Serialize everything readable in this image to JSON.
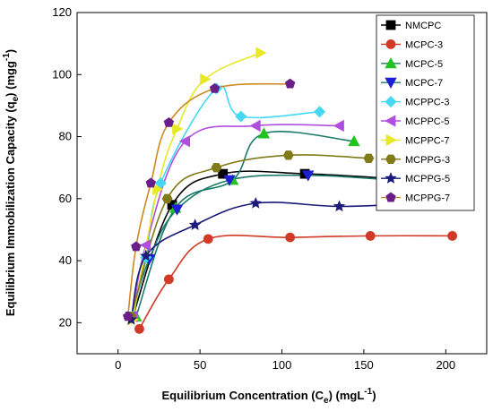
{
  "chart_data": {
    "type": "line",
    "xlabel": "Equilibrium Concentration (C",
    "xlabel_sub": "e",
    "xlabel_unit": ") (mgL",
    "xlabel_sup": "-1",
    "xlabel_end": ")",
    "ylabel": "Equilibrium Immobilization Capacity (q",
    "ylabel_sub": "e",
    "ylabel_unit": ") (mgg",
    "ylabel_sup": "-1",
    "ylabel_end": ")",
    "xlim": [
      -25,
      225
    ],
    "ylim": [
      10,
      120
    ],
    "xticks": [
      0,
      50,
      100,
      150,
      200
    ],
    "yticks": [
      20,
      40,
      60,
      80,
      100,
      120
    ],
    "grid": false,
    "legend_position": "top-right",
    "series": [
      {
        "name": "NMCPC",
        "color": "#000000",
        "marker": "square",
        "line_color": "#000000",
        "points": [
          [
            9,
            22
          ],
          [
            33,
            58
          ],
          [
            64,
            68
          ],
          [
            114,
            68
          ],
          [
            167,
            66.5
          ]
        ]
      },
      {
        "name": "MCPC-3",
        "color": "#d03a26",
        "marker": "circle",
        "line_color": "#d03a26",
        "points": [
          [
            13,
            18
          ],
          [
            31,
            34
          ],
          [
            55,
            47
          ],
          [
            105,
            47.5
          ],
          [
            154,
            48
          ],
          [
            204,
            48
          ]
        ]
      },
      {
        "name": "MCPC-5",
        "color": "#22c21f",
        "marker": "triangle-up",
        "line_color": "#1a7a6a",
        "points": [
          [
            11,
            22
          ],
          [
            35,
            57
          ],
          [
            70,
            66
          ],
          [
            89,
            81
          ],
          [
            144,
            78.5
          ]
        ]
      },
      {
        "name": "MCPC-7",
        "color": "#1f1fd6",
        "marker": "triangle-down",
        "line_color": "#1a7a6a",
        "points": [
          [
            8,
            22
          ],
          [
            19,
            40.5
          ],
          [
            36,
            56.5
          ],
          [
            68,
            66
          ],
          [
            116,
            67.5
          ],
          [
            168,
            66
          ]
        ]
      },
      {
        "name": "MCPPC-3",
        "color": "#45d8f0",
        "marker": "diamond",
        "line_color": "#45d8f0",
        "points": [
          [
            9,
            22
          ],
          [
            17,
            41
          ],
          [
            26,
            65
          ],
          [
            60,
            95.5
          ],
          [
            75,
            86.5
          ],
          [
            123,
            88
          ]
        ]
      },
      {
        "name": "MCPPC-5",
        "color": "#b04ee0",
        "marker": "triangle-left",
        "line_color": "#b04ee0",
        "points": [
          [
            9,
            22
          ],
          [
            17,
            45
          ],
          [
            41,
            78.5
          ],
          [
            84,
            83.5
          ],
          [
            135,
            83.5
          ]
        ]
      },
      {
        "name": "MCPPC-7",
        "color": "#e8e826",
        "marker": "triangle-right",
        "line_color": "#e8e826",
        "points": [
          [
            9,
            21
          ],
          [
            24,
            63
          ],
          [
            36,
            82.5
          ],
          [
            53,
            98.5
          ],
          [
            87,
            107
          ]
        ]
      },
      {
        "name": "MCPPG-3",
        "color": "#807a18",
        "marker": "hexagon",
        "line_color": "#807a18",
        "points": [
          [
            8,
            22
          ],
          [
            30,
            60
          ],
          [
            60,
            70
          ],
          [
            104,
            74
          ],
          [
            153,
            73
          ]
        ]
      },
      {
        "name": "MCPPG-5",
        "color": "#1c1a7a",
        "marker": "star",
        "line_color": "#1c1a7a",
        "points": [
          [
            8,
            21
          ],
          [
            17,
            41.5
          ],
          [
            47,
            51.5
          ],
          [
            84,
            58.5
          ],
          [
            135,
            57.5
          ],
          [
            183,
            58.5
          ]
        ]
      },
      {
        "name": "MCPPG-7",
        "color": "#6a1e8a",
        "marker": "pentagon",
        "line_color": "#cc8a20",
        "points": [
          [
            6,
            22
          ],
          [
            11,
            44.5
          ],
          [
            20,
            65
          ],
          [
            31,
            84.5
          ],
          [
            59,
            95.5
          ],
          [
            105,
            97
          ]
        ]
      }
    ]
  }
}
